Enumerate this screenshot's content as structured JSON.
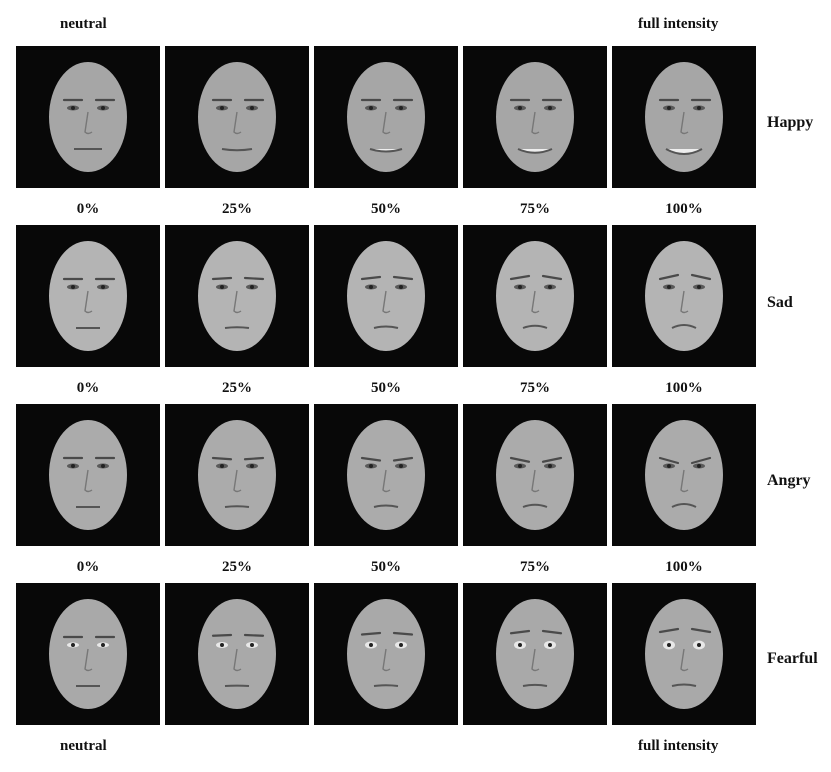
{
  "labels": {
    "top_left": "neutral",
    "top_right": "full intensity",
    "bottom_left": "neutral",
    "bottom_right": "full intensity"
  },
  "rows": [
    {
      "emotion": "Happy",
      "intensities": [
        "0%",
        "25%",
        "50%",
        "75%",
        "100%"
      ],
      "face_shade": "#a6a6a6"
    },
    {
      "emotion": "Sad",
      "intensities": [
        "0%",
        "25%",
        "50%",
        "75%",
        "100%"
      ],
      "face_shade": "#b4b4b4"
    },
    {
      "emotion": "Angry",
      "intensities": [
        "0%",
        "25%",
        "50%",
        "75%",
        "100%"
      ],
      "face_shade": "#ababab"
    },
    {
      "emotion": "Fearful",
      "intensities": [],
      "face_shade": "#a9a9a9"
    }
  ]
}
